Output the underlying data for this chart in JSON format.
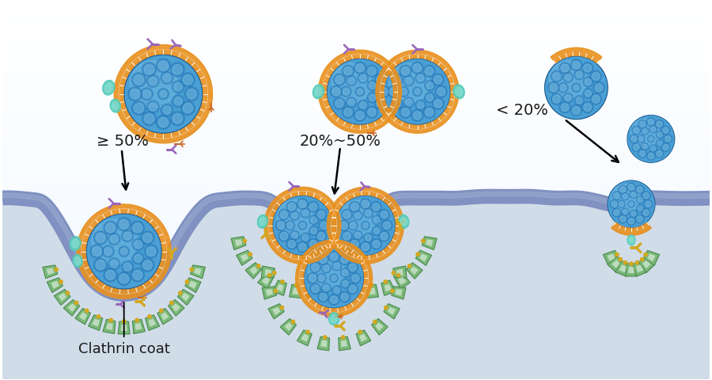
{
  "bg_color": "#f0f5f8",
  "cytoplasm_color": "#d0dce8",
  "membrane_color": "#7b8cbf",
  "membrane_highlight": "#9aabcf",
  "np_blue_outer": "#4a9fd4",
  "np_blue_inner": "#2878b8",
  "np_blue_light": "#85c5e8",
  "np_blue_dark": "#1a5a90",
  "np_bilayer_orange": "#e8901e",
  "np_bilayer_light": "#f0b060",
  "clathrin_green": "#7ab87a",
  "clathrin_dark": "#4a8a4a",
  "clathrin_white": "#e8f0e8",
  "receptor_gold": "#d4a820",
  "receptor_dark": "#a07800",
  "ligand_purple": "#9966bb",
  "ligand_teal": "#55ccbb",
  "ligand_teal2": "#88ddd0",
  "ligand_orange": "#cc6622",
  "text_black": "#1a1a1a",
  "label_ge50": "≥ 50%",
  "label_mid": "20%~50%",
  "label_lt20": "< 20%",
  "label_clathrin": "Clathrin coat",
  "font_size": 13
}
